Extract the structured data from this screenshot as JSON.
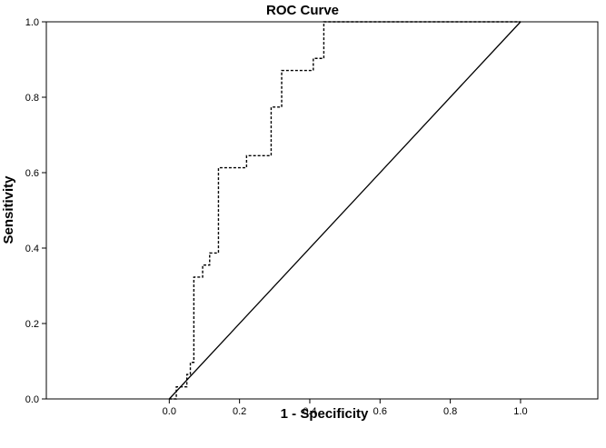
{
  "chart_data": {
    "type": "line",
    "title": "ROC Curve",
    "xlabel": "1 - Specificity",
    "ylabel": "Sensitivity",
    "xlim": [
      -0.35,
      1.22
    ],
    "ylim": [
      0,
      1
    ],
    "x_ticks": [
      0.0,
      0.2,
      0.4,
      0.6,
      0.8,
      1.0
    ],
    "y_ticks": [
      0.0,
      0.2,
      0.4,
      0.6,
      0.8,
      1.0
    ],
    "x_tick_labels": [
      "0.0",
      "0.2",
      "0.4",
      "0.6",
      "0.8",
      "1.0"
    ],
    "y_tick_labels": [
      "0.0",
      "0.2",
      "0.4",
      "0.6",
      "0.8",
      "1.0"
    ],
    "grid": false,
    "series": [
      {
        "style": "dashed",
        "color": "#000000",
        "points": [
          [
            0.0,
            0.0
          ],
          [
            0.02,
            0.0
          ],
          [
            0.02,
            0.032
          ],
          [
            0.05,
            0.032
          ],
          [
            0.05,
            0.065
          ],
          [
            0.06,
            0.065
          ],
          [
            0.06,
            0.097
          ],
          [
            0.07,
            0.097
          ],
          [
            0.07,
            0.323
          ],
          [
            0.095,
            0.323
          ],
          [
            0.095,
            0.355
          ],
          [
            0.115,
            0.355
          ],
          [
            0.115,
            0.387
          ],
          [
            0.14,
            0.387
          ],
          [
            0.14,
            0.613
          ],
          [
            0.22,
            0.613
          ],
          [
            0.22,
            0.645
          ],
          [
            0.29,
            0.645
          ],
          [
            0.29,
            0.774
          ],
          [
            0.32,
            0.774
          ],
          [
            0.32,
            0.871
          ],
          [
            0.41,
            0.871
          ],
          [
            0.41,
            0.903
          ],
          [
            0.44,
            0.903
          ],
          [
            0.44,
            1.0
          ],
          [
            1.0,
            1.0
          ]
        ]
      },
      {
        "style": "solid",
        "color": "#000000",
        "points": [
          [
            0.0,
            0.0
          ],
          [
            1.0,
            1.0
          ]
        ]
      }
    ]
  }
}
